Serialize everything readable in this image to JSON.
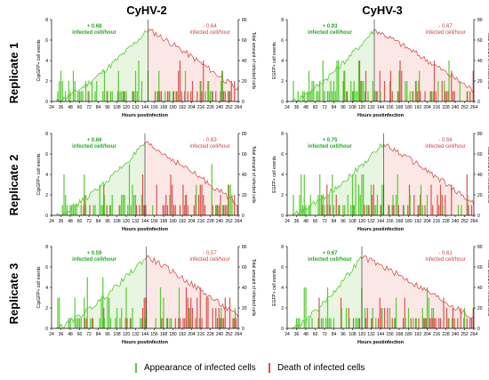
{
  "columns": [
    "CyHV-2",
    "CyHV-3"
  ],
  "rows": [
    "Replicate 1",
    "Replicate 2",
    "Replicate 3"
  ],
  "legend": {
    "appearance": "Appearance of infected cells",
    "death": "Death of infected cells",
    "appearance_color": "#55cc33",
    "death_color": "#d9534f"
  },
  "colors": {
    "appearance_text": "#22aa22",
    "death_text": "#cc4444",
    "fill_left": "#e8f5e0",
    "fill_right": "#fbe8e6"
  },
  "chart_data": [
    {
      "type": "bar",
      "panel": "CyHV-2 Replicate 1",
      "xlabel": "Hours postinfection",
      "ylabel": "CqsGFP+ cell events",
      "y2label": "Total amount of infected cells",
      "xlim": [
        24,
        264
      ],
      "ylim": [
        0,
        8
      ],
      "y2lim": [
        0,
        80
      ],
      "peak": 148,
      "rate_up": "+ 0.68",
      "rate_up_label": "infected cell/hour",
      "rate_down": "- 0.64",
      "rate_down_label": "infected cell/hour"
    },
    {
      "type": "bar",
      "panel": "CyHV-3 Replicate 1",
      "xlabel": "Hours postinfection",
      "ylabel": "EGFP+ cell events",
      "y2label": "Total amount of infected cells",
      "xlim": [
        24,
        264
      ],
      "ylim": [
        0,
        8
      ],
      "y2lim": [
        0,
        80
      ],
      "peak": 136,
      "rate_up": "+ 0.93",
      "rate_up_label": "infected cell/hour",
      "rate_down": "- 0.67",
      "rate_down_label": "infected cell/hour"
    },
    {
      "type": "bar",
      "panel": "CyHV-2 Replicate 2",
      "xlabel": "Hours postinfection",
      "ylabel": "CqsGFP+ cell events",
      "y2label": "Total amount of infected cells",
      "xlim": [
        24,
        264
      ],
      "ylim": [
        0,
        8
      ],
      "y2lim": [
        0,
        80
      ],
      "peak": 144,
      "rate_up": "+ 0.66",
      "rate_up_label": "infected cell/hour",
      "rate_down": "- 0.63",
      "rate_down_label": "infected cell/hour"
    },
    {
      "type": "bar",
      "panel": "CyHV-3 Replicate 2",
      "xlabel": "Hours postinfection",
      "ylabel": "EGFP+ cell events",
      "y2label": "Total amount of infected cells",
      "xlim": [
        24,
        264
      ],
      "ylim": [
        0,
        8
      ],
      "y2lim": [
        0,
        80
      ],
      "peak": 148,
      "rate_up": "+ 0.75",
      "rate_up_label": "infected cell/hour",
      "rate_down": "- 0.56",
      "rate_down_label": "infected cell/hour"
    },
    {
      "type": "bar",
      "panel": "CyHV-2 Replicate 3",
      "xlabel": "Hours postinfection",
      "ylabel": "CqsGFP+ cell events",
      "y2label": "Total amount of infected cells",
      "xlim": [
        24,
        264
      ],
      "ylim": [
        0,
        8
      ],
      "y2lim": [
        0,
        80
      ],
      "peak": 146,
      "rate_up": "+ 0.59",
      "rate_up_label": "infected cell/hour",
      "rate_down": "- 0.57",
      "rate_down_label": "infected cell/hour"
    },
    {
      "type": "bar",
      "panel": "CyHV-3 Replicate 3",
      "xlabel": "Hours postinfection",
      "ylabel": "EGFP+ cell events",
      "y2label": "Total amount of infected cells",
      "xlim": [
        24,
        264
      ],
      "ylim": [
        0,
        8
      ],
      "y2lim": [
        0,
        80
      ],
      "peak": 120,
      "rate_up": "+ 0.67",
      "rate_up_label": "infected cell/hour",
      "rate_down": "- 0.61",
      "rate_down_label": "infected cell/hour"
    }
  ]
}
